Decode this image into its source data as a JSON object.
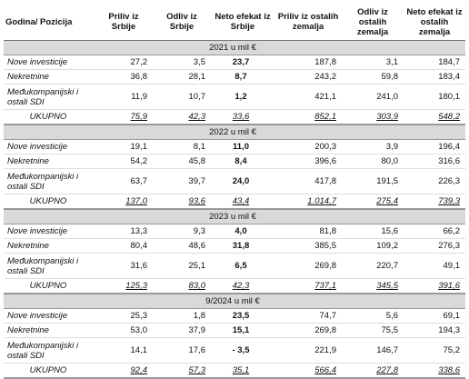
{
  "table": {
    "columns": [
      "Godina/ Pozicija",
      "Priliv iz Srbije",
      "Odliv iz Srbije",
      "Neto efekat iz Srbije",
      "Priliv iz ostalih zemalja",
      "Odliv iz ostalih zemalja",
      "Neto efekat iz ostalih zemalja"
    ],
    "sections": [
      {
        "title": "2021 u mil €",
        "rows": [
          [
            "Nove investicije",
            "27,2",
            "3,5",
            "23,7",
            "187,8",
            "3,1",
            "184,7"
          ],
          [
            "Nekretnine",
            "36,8",
            "28,1",
            "8,7",
            "243,2",
            "59,8",
            "183,4"
          ],
          [
            "Međukompanijski i ostali SDI",
            "11,9",
            "10,7",
            "1,2",
            "421,1",
            "241,0",
            "180,1"
          ],
          [
            "UKUPNO",
            "75,9",
            "42,3",
            "33,6",
            "852,1",
            "303,9",
            "548,2"
          ]
        ]
      },
      {
        "title": "2022 u mil €",
        "rows": [
          [
            "Nove investicije",
            "19,1",
            "8,1",
            "11,0",
            "200,3",
            "3,9",
            "196,4"
          ],
          [
            "Nekretnine",
            "54,2",
            "45,8",
            "8,4",
            "396,6",
            "80,0",
            "316,6"
          ],
          [
            "Međukompanijski i ostali SDI",
            "63,7",
            "39,7",
            "24,0",
            "417,8",
            "191,5",
            "226,3"
          ],
          [
            "UKUPNO",
            "137,0",
            "93,6",
            "43,4",
            "1.014,7",
            "275,4",
            "739,3"
          ]
        ]
      },
      {
        "title": "2023 u mil €",
        "rows": [
          [
            "Nove investicije",
            "13,3",
            "9,3",
            "4,0",
            "81,8",
            "15,6",
            "66,2"
          ],
          [
            "Nekretnine",
            "80,4",
            "48,6",
            "31,8",
            "385,5",
            "109,2",
            "276,3"
          ],
          [
            "Međukompanijski i ostali SDI",
            "31,6",
            "25,1",
            "6,5",
            "269,8",
            "220,7",
            "49,1"
          ],
          [
            "UKUPNO",
            "125,3",
            "83,0",
            "42,3",
            "737,1",
            "345,5",
            "391,6"
          ]
        ]
      },
      {
        "title": "9/2024 u mil €",
        "rows": [
          [
            "Nove investicije",
            "25,3",
            "1,8",
            "23,5",
            "74,7",
            "5,6",
            "69,1"
          ],
          [
            "Nekretnine",
            "53,0",
            "37,9",
            "15,1",
            "269,8",
            "75,5",
            "194,3"
          ],
          [
            "Međukompanijski i ostali SDI",
            "14,1",
            "17,6",
            "- 3,5",
            "221,9",
            "146,7",
            "75,2"
          ],
          [
            "UKUPNO",
            "92,4",
            "57,3",
            "35,1",
            "566,4",
            "227,8",
            "338,6"
          ]
        ]
      }
    ]
  }
}
